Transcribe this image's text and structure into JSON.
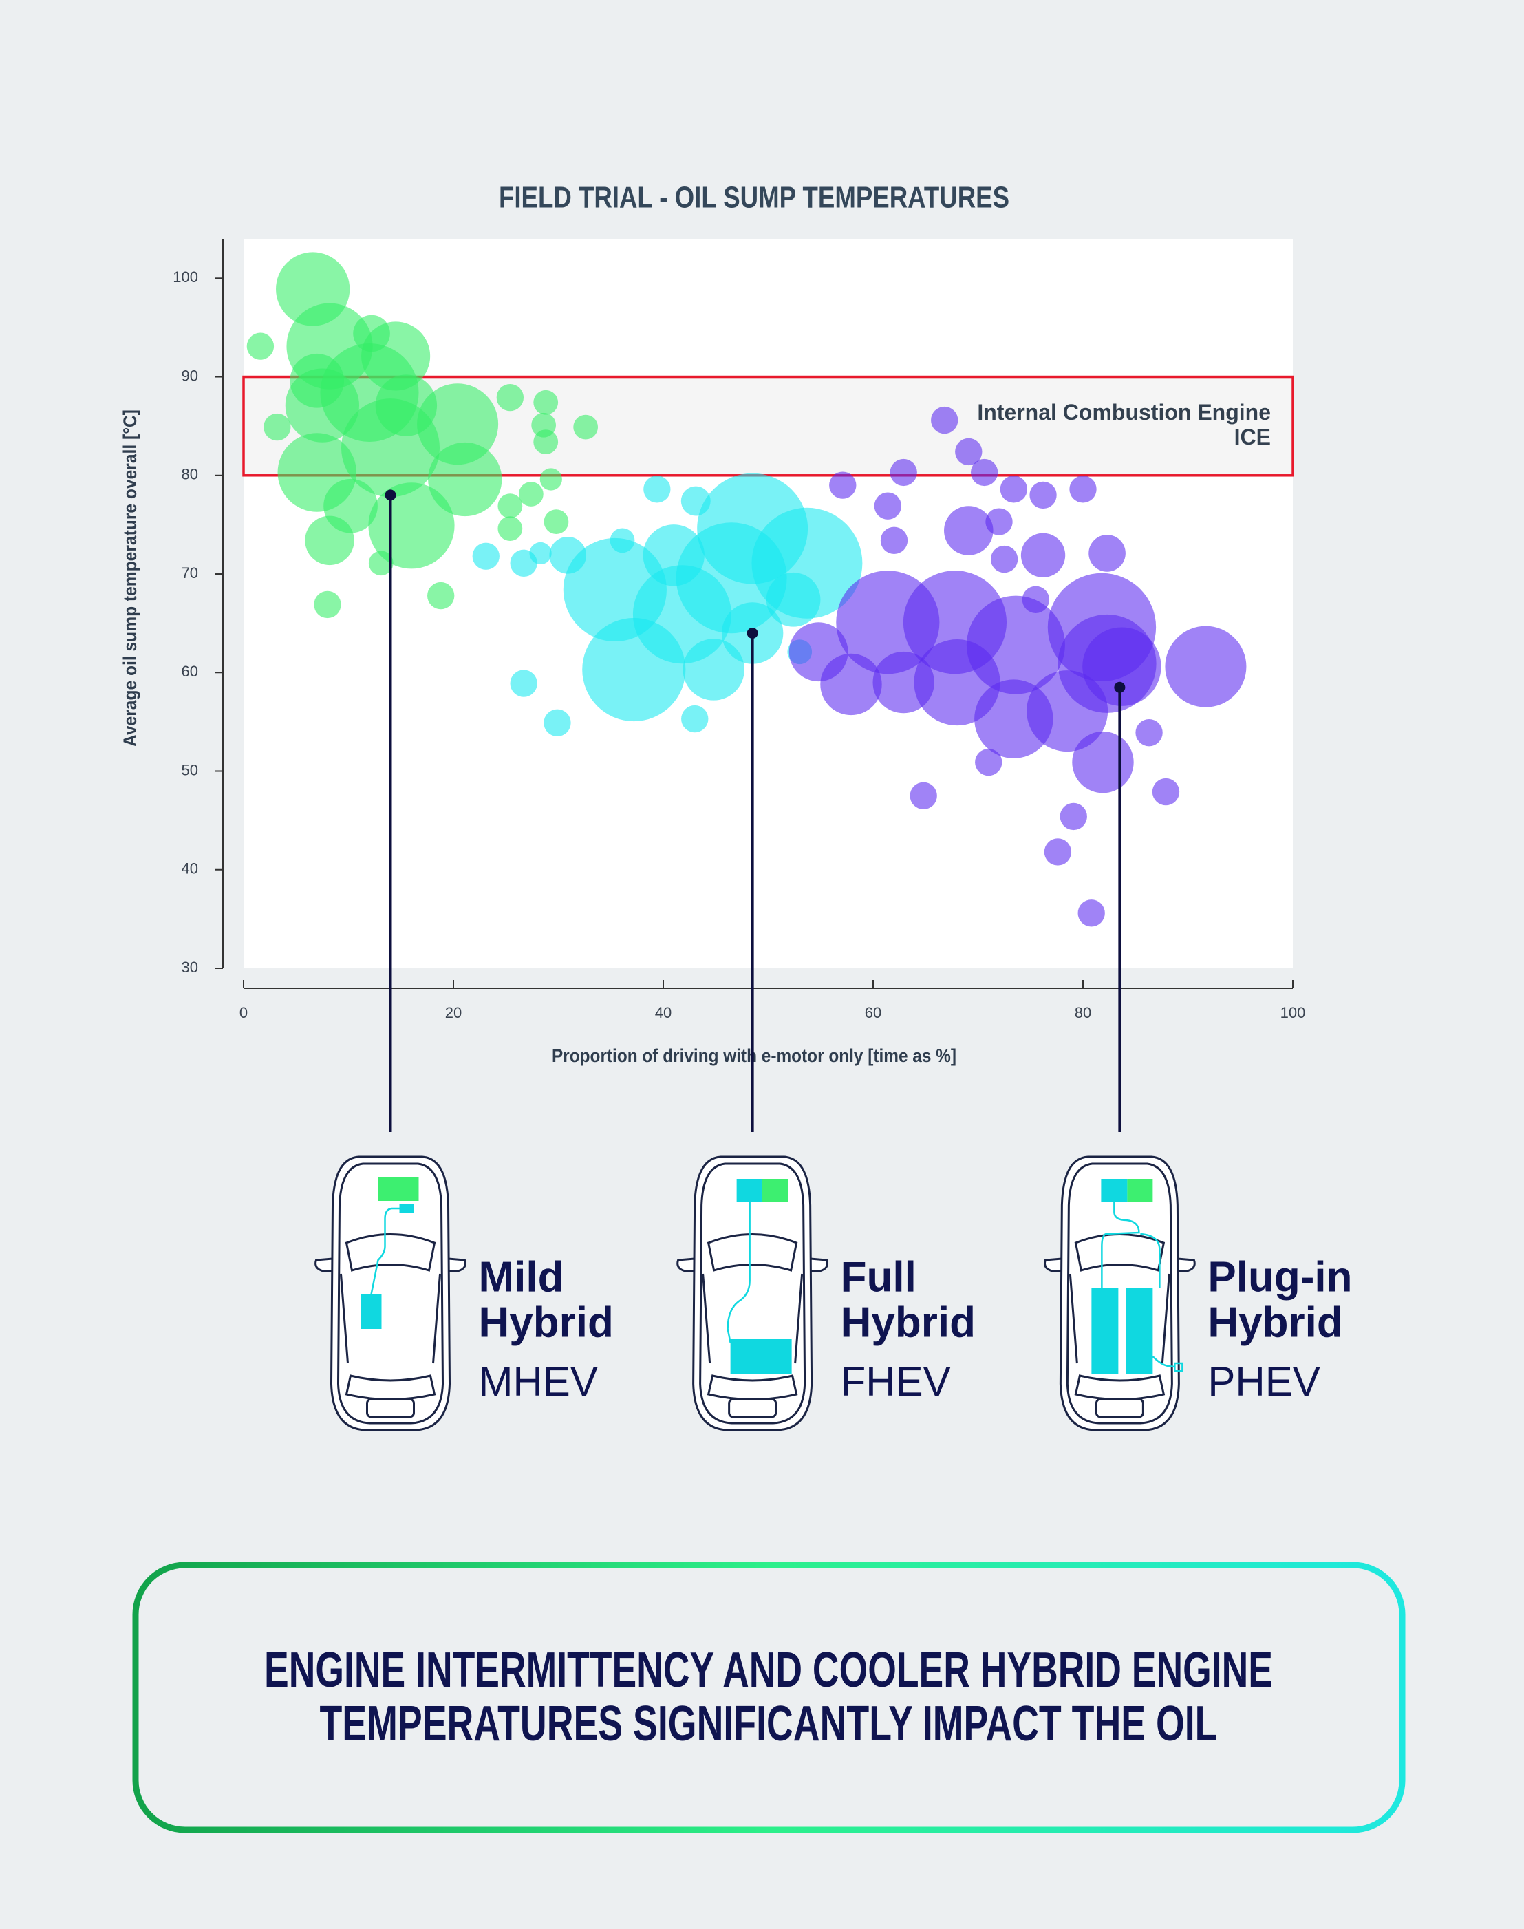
{
  "chart_data": {
    "type": "bubble",
    "title": "FIELD TRIAL - OIL SUMP TEMPERATURES",
    "x_label": "Proportion of driving with e-motor only [time as %]",
    "y_label": "Average oil sump temperature overall [°C]",
    "xlim": [
      0,
      100
    ],
    "ylim": [
      30,
      104
    ],
    "xticks": [
      0,
      20,
      40,
      60,
      80,
      100
    ],
    "yticks": [
      30,
      40,
      50,
      60,
      70,
      80,
      90,
      100
    ],
    "band": {
      "y": [
        80,
        90
      ],
      "labels": [
        "Internal Combustion Engine",
        "ICE"
      ],
      "color": "#e8192c"
    },
    "series": [
      {
        "name": "MHEV",
        "label_lines": [
          "Mild",
          "Hybrid"
        ],
        "color": "#33ee66",
        "marker": [
          14,
          78
        ],
        "x": [
          6.6,
          1.6,
          8.2,
          12.2,
          14.5,
          7.0,
          12,
          7.5,
          15.5,
          3.2,
          20.4,
          25.4,
          28.8,
          28.6,
          28.8,
          32.6,
          14,
          7,
          21.1,
          29.3,
          27.4,
          25.4,
          10.2,
          16,
          25.4,
          29.8,
          8.2,
          13.1,
          8,
          18.8
        ],
        "y": [
          98.9,
          93.1,
          93.1,
          94.4,
          92.1,
          89.6,
          88.4,
          87.1,
          87.1,
          84.9,
          85.2,
          87.9,
          87.4,
          85.1,
          83.4,
          84.9,
          82.8,
          80.3,
          79.6,
          79.6,
          78.1,
          76.9,
          76.9,
          74.9,
          74.6,
          75.3,
          73.4,
          71.1,
          66.9,
          67.8
        ],
        "sizes": [
          30,
          11,
          35,
          15,
          28,
          22,
          40,
          30,
          25,
          11,
          33,
          11,
          10,
          10,
          10,
          10,
          40,
          32,
          30,
          9,
          10,
          10,
          22,
          35,
          10,
          10,
          20,
          10,
          11,
          11
        ]
      },
      {
        "name": "FHEV",
        "label_lines": [
          "Full",
          "Hybrid"
        ],
        "color": "#18e8f0",
        "marker": [
          48.5,
          64
        ],
        "x": [
          39.4,
          43.1,
          48.5,
          53.7,
          41,
          36.1,
          30.9,
          28.3,
          23.1,
          26.7,
          35.4,
          46.5,
          41.8,
          52.4,
          48.5,
          37.2,
          44.8,
          53,
          26.7,
          29.9,
          43
        ],
        "y": [
          78.6,
          77.4,
          74.6,
          71.1,
          71.9,
          73.4,
          71.9,
          72.1,
          71.8,
          71.1,
          68.4,
          69.6,
          65.9,
          67.4,
          64,
          60.3,
          60.3,
          62.1,
          58.9,
          54.9,
          55.3
        ],
        "sizes": [
          11,
          12,
          45,
          45,
          25,
          10,
          15,
          9,
          11,
          11,
          42,
          45,
          40,
          22,
          25,
          42,
          25,
          10,
          11,
          11,
          11
        ]
      },
      {
        "name": "PHEV",
        "label_lines": [
          "Plug-in",
          "Hybrid"
        ],
        "color": "#5b2af0",
        "marker": [
          83.5,
          58.5
        ],
        "x": [
          66.8,
          69.1,
          62.9,
          70.6,
          57.1,
          73.4,
          76.2,
          80,
          61.4,
          72,
          69.1,
          62,
          72.5,
          76.2,
          82.3,
          75.5,
          54.8,
          61.4,
          67.8,
          73.6,
          81.8,
          82.3,
          83.7,
          57.9,
          62.9,
          68,
          73.4,
          78.5,
          91.7,
          81.9,
          86.3,
          71,
          64.8,
          87.9,
          79.1,
          77.6,
          80.8
        ],
        "y": [
          85.6,
          82.4,
          80.3,
          80.3,
          79,
          78.6,
          78,
          78.6,
          76.9,
          75.3,
          74.4,
          73.4,
          71.5,
          71.9,
          72.1,
          67.4,
          62.1,
          65.1,
          65.1,
          62.8,
          64.6,
          60.9,
          60.6,
          58.8,
          59,
          59,
          55.3,
          56.1,
          60.6,
          50.9,
          53.9,
          50.9,
          47.5,
          47.9,
          45.4,
          41.8,
          35.6
        ],
        "sizes": [
          11,
          11,
          11,
          11,
          11,
          11,
          11,
          11,
          11,
          11,
          20,
          11,
          11,
          18,
          15,
          11,
          24,
          42,
          42,
          40,
          44,
          40,
          32,
          25,
          25,
          35,
          32,
          33,
          33,
          25,
          11,
          11,
          11,
          11,
          11,
          11,
          11
        ]
      }
    ]
  },
  "footer": {
    "lines": [
      "ENGINE INTERMITTENCY AND COOLER HYBRID ENGINE",
      "TEMPERATURES SIGNIFICANTLY IMPACT THE OIL"
    ]
  }
}
